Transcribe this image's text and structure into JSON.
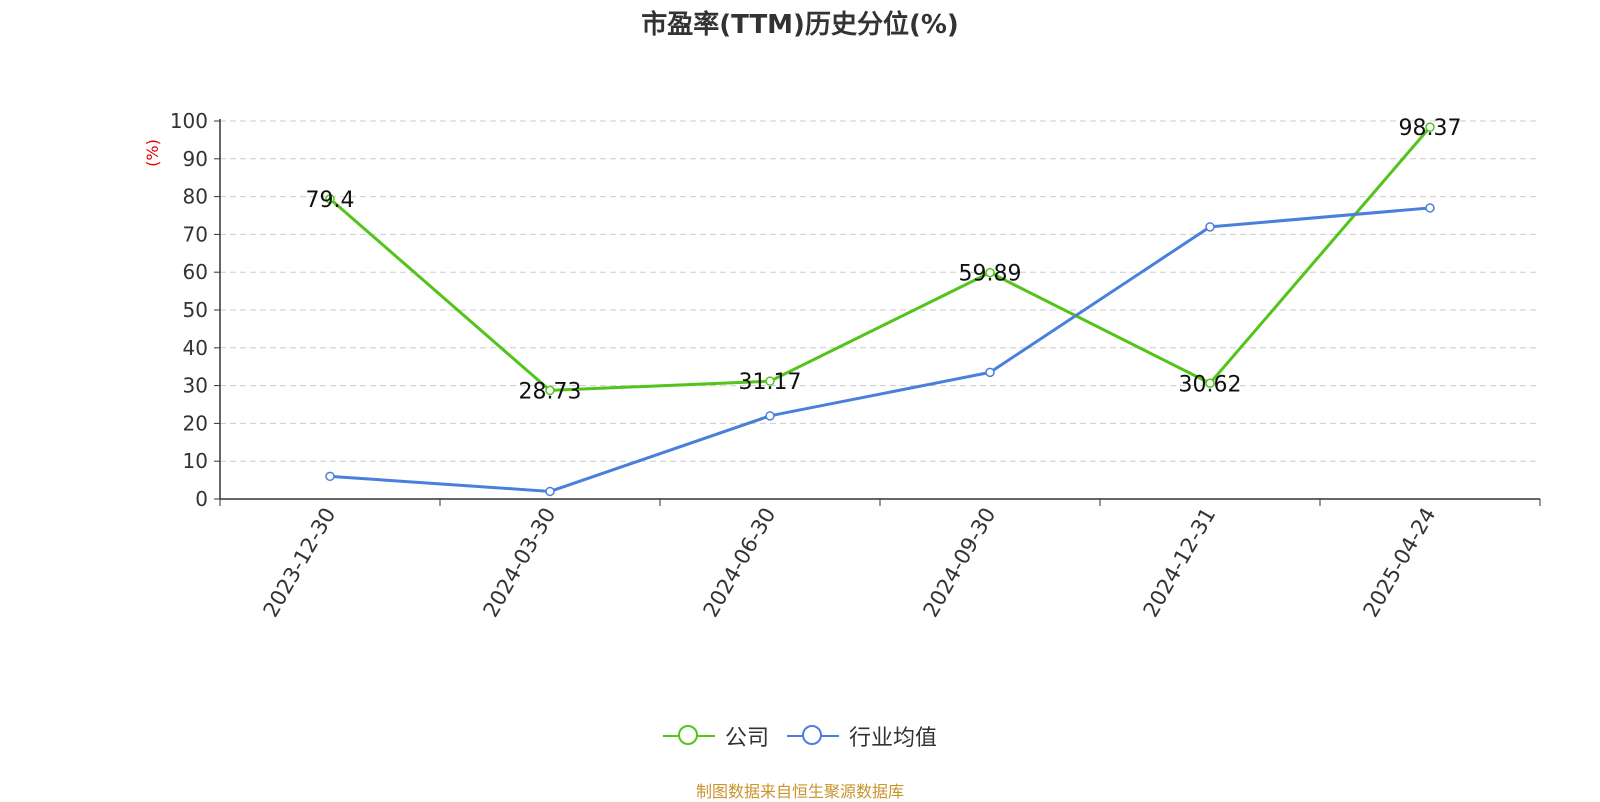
{
  "title": "市盈率(TTM)历史分位(%)",
  "source": "制图数据来自恒生聚源数据库",
  "chart_data": {
    "type": "line",
    "title": "市盈率(TTM)历史分位(%)",
    "ylabel": "(%)",
    "xlabel": "",
    "ylim": [
      0,
      100
    ],
    "yticks": [
      "0",
      "10",
      "20",
      "30",
      "40",
      "50",
      "60",
      "70",
      "80",
      "90",
      "100"
    ],
    "categories": [
      "2023-12-30",
      "2024-03-30",
      "2024-06-30",
      "2024-09-30",
      "2024-12-31",
      "2025-04-24"
    ],
    "grid": true,
    "legend_position": "bottom",
    "series": [
      {
        "name": "公司",
        "color": "#52c41a",
        "show_labels": true,
        "values": [
          79.4,
          28.73,
          31.17,
          59.89,
          30.62,
          98.37
        ],
        "labels": [
          "79.4",
          "28.73",
          "31.17",
          "59.89",
          "30.62",
          "98.37"
        ]
      },
      {
        "name": "行业均值",
        "color": "#4a7fdb",
        "show_labels": false,
        "values": [
          6,
          2,
          22,
          33.5,
          72,
          77
        ]
      }
    ]
  }
}
